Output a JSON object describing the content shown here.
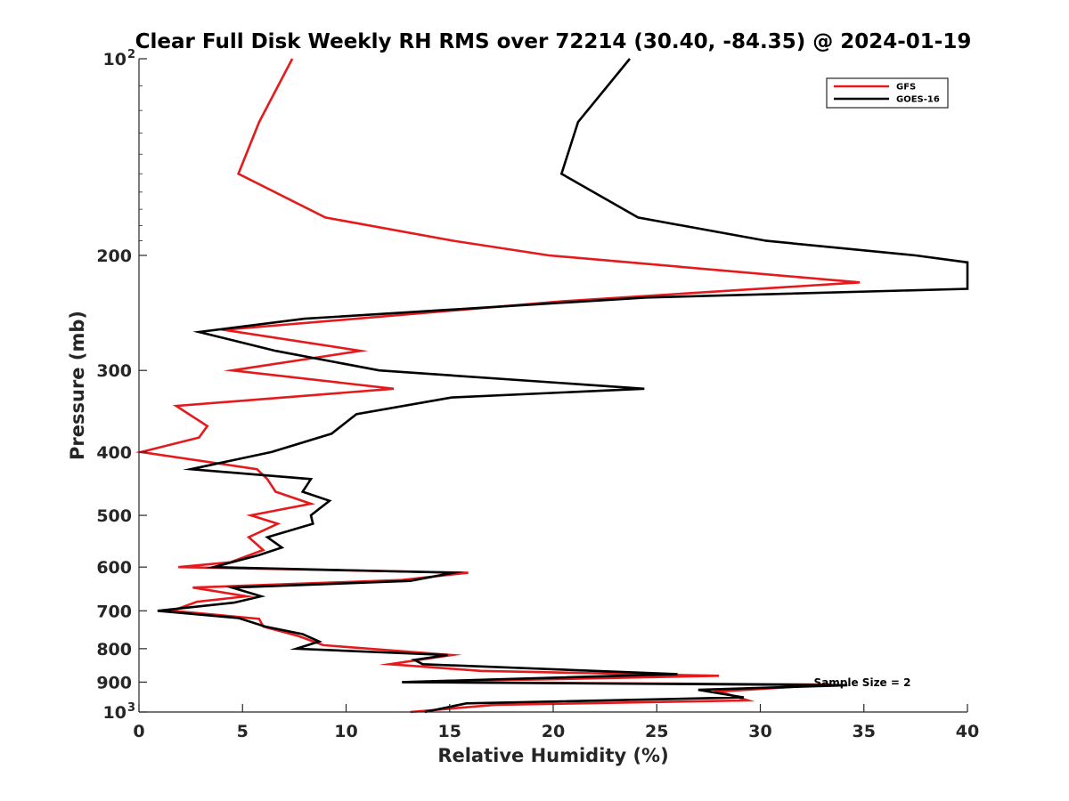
{
  "chart_data": {
    "type": "line",
    "title": "Clear Full Disk Weekly RH RMS over 72214 (30.40, -84.35) @ 2024-01-19",
    "xlabel": "Relative Humidity (%)",
    "ylabel": "Pressure (mb)",
    "xlim": [
      0,
      40
    ],
    "ylim": [
      100,
      1000
    ],
    "yscale": "log",
    "y_reversed": true,
    "x_ticks": [
      "0",
      "5",
      "10",
      "15",
      "20",
      "25",
      "30",
      "35",
      "40"
    ],
    "y_ticks": [
      {
        "value": 100,
        "label": "10",
        "exp": "2"
      },
      {
        "value": 200,
        "label": "200"
      },
      {
        "value": 300,
        "label": "300"
      },
      {
        "value": 400,
        "label": "400"
      },
      {
        "value": 500,
        "label": "500"
      },
      {
        "value": 600,
        "label": "600"
      },
      {
        "value": 700,
        "label": "700"
      },
      {
        "value": 800,
        "label": "800"
      },
      {
        "value": 900,
        "label": "900"
      },
      {
        "value": 1000,
        "label": "10",
        "exp": "3"
      }
    ],
    "legend_position": "top-right",
    "annotation": "Sample Size = 2",
    "series": [
      {
        "name": "GFS",
        "color": "#e41a1c",
        "points": [
          [
            7.4,
            100
          ],
          [
            5.8,
            125
          ],
          [
            4.8,
            150
          ],
          [
            9.0,
            175
          ],
          [
            15.2,
            190
          ],
          [
            19.8,
            200
          ],
          [
            34.8,
            220
          ],
          [
            20.5,
            235
          ],
          [
            4.1,
            260
          ],
          [
            10.7,
            280
          ],
          [
            4.5,
            300
          ],
          [
            12.3,
            320
          ],
          [
            1.8,
            340
          ],
          [
            3.3,
            365
          ],
          [
            2.9,
            380
          ],
          [
            0.1,
            400
          ],
          [
            5.7,
            425
          ],
          [
            6.2,
            440
          ],
          [
            6.6,
            460
          ],
          [
            8.3,
            480
          ],
          [
            5.4,
            500
          ],
          [
            6.7,
            515
          ],
          [
            5.3,
            540
          ],
          [
            6.0,
            565
          ],
          [
            4.4,
            590
          ],
          [
            1.9,
            600
          ],
          [
            15.9,
            612
          ],
          [
            12.7,
            628
          ],
          [
            2.6,
            645
          ],
          [
            5.2,
            665
          ],
          [
            2.8,
            678
          ],
          [
            1.6,
            700
          ],
          [
            5.8,
            720
          ],
          [
            6.0,
            740
          ],
          [
            7.7,
            765
          ],
          [
            8.9,
            790
          ],
          [
            15.1,
            818
          ],
          [
            12.1,
            845
          ],
          [
            16.5,
            865
          ],
          [
            28.0,
            880
          ],
          [
            18.9,
            892
          ],
          [
            12.7,
            900
          ],
          [
            33.4,
            908
          ],
          [
            28.0,
            930
          ],
          [
            29.4,
            960
          ],
          [
            17.2,
            975
          ],
          [
            13.1,
            1000
          ]
        ]
      },
      {
        "name": "GOES-16",
        "color": "#000000",
        "points": [
          [
            23.7,
            100
          ],
          [
            21.2,
            125
          ],
          [
            20.4,
            150
          ],
          [
            24.1,
            175
          ],
          [
            30.3,
            190
          ],
          [
            37.5,
            200
          ],
          [
            40.0,
            205
          ],
          [
            40.0,
            225
          ],
          [
            24.5,
            232
          ],
          [
            8.0,
            250
          ],
          [
            2.9,
            262
          ],
          [
            6.6,
            280
          ],
          [
            11.6,
            300
          ],
          [
            24.4,
            320
          ],
          [
            15.1,
            330
          ],
          [
            10.5,
            350
          ],
          [
            9.3,
            375
          ],
          [
            6.4,
            400
          ],
          [
            2.5,
            425
          ],
          [
            8.3,
            440
          ],
          [
            7.9,
            460
          ],
          [
            9.2,
            475
          ],
          [
            8.3,
            500
          ],
          [
            8.4,
            515
          ],
          [
            6.2,
            540
          ],
          [
            6.9,
            560
          ],
          [
            5.8,
            575
          ],
          [
            3.6,
            600
          ],
          [
            15.2,
            612
          ],
          [
            13.1,
            630
          ],
          [
            4.5,
            645
          ],
          [
            5.9,
            665
          ],
          [
            4.6,
            680
          ],
          [
            0.9,
            700
          ],
          [
            4.8,
            718
          ],
          [
            6.1,
            740
          ],
          [
            7.9,
            760
          ],
          [
            8.7,
            780
          ],
          [
            7.6,
            800
          ],
          [
            14.9,
            818
          ],
          [
            13.3,
            832
          ],
          [
            13.7,
            845
          ],
          [
            26.0,
            875
          ],
          [
            12.7,
            900
          ],
          [
            34.2,
            910
          ],
          [
            27.0,
            925
          ],
          [
            29.2,
            950
          ],
          [
            15.8,
            970
          ],
          [
            13.8,
            1000
          ]
        ]
      }
    ]
  }
}
